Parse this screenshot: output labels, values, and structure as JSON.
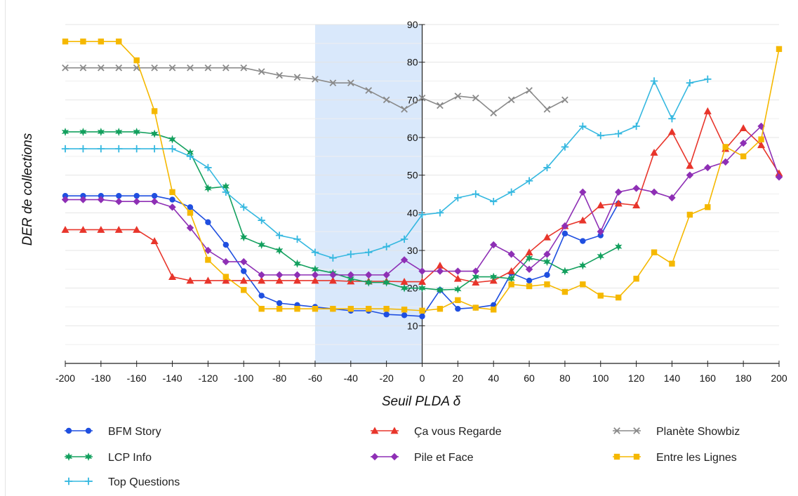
{
  "chart_data": {
    "type": "line",
    "title": "",
    "xlabel": "Seuil PLDA δ",
    "ylabel": "DER de collections",
    "xlim": [
      -200,
      200
    ],
    "ylim": [
      0,
      90
    ],
    "x_ticks": [
      -200,
      -180,
      -160,
      -140,
      -120,
      -100,
      -80,
      -60,
      -40,
      -20,
      0,
      20,
      40,
      60,
      80,
      100,
      120,
      140,
      160,
      180,
      200
    ],
    "y_ticks": [
      10,
      20,
      30,
      40,
      50,
      60,
      70,
      80,
      90
    ],
    "minor_y_step": 5,
    "highlight_region": {
      "x0": -60,
      "x1": 0,
      "color": "#d9e8fb"
    },
    "grid": "horizontal",
    "legend_position": "bottom",
    "series": [
      {
        "name": "BFM Story",
        "color": "#1f4fe0",
        "marker": "circle",
        "x": [
          -200,
          -190,
          -180,
          -170,
          -160,
          -150,
          -140,
          -130,
          -120,
          -110,
          -100,
          -90,
          -80,
          -70,
          -60,
          -50,
          -40,
          -30,
          -20,
          -10,
          0,
          10,
          20,
          30,
          40,
          50,
          60,
          70,
          80,
          90,
          100,
          110
        ],
        "y": [
          44.5,
          44.5,
          44.5,
          44.5,
          44.5,
          44.5,
          43.5,
          41.5,
          37.5,
          31.5,
          24.5,
          18,
          16,
          15.5,
          15,
          14.5,
          14,
          14,
          13,
          12.8,
          12.5,
          19.5,
          14.5,
          14.8,
          15.5,
          24,
          22,
          23.5,
          34.5,
          32.5,
          34,
          42.5
        ]
      },
      {
        "name": "Ça vous Regarde",
        "color": "#e8352b",
        "marker": "triangle",
        "x": [
          -200,
          -190,
          -180,
          -170,
          -160,
          -150,
          -140,
          -130,
          -120,
          -110,
          -100,
          -90,
          -80,
          -70,
          -60,
          -50,
          -40,
          -30,
          -20,
          -10,
          0,
          10,
          20,
          30,
          40,
          50,
          60,
          70,
          80,
          90,
          100,
          110,
          120,
          130,
          140,
          150,
          160,
          170,
          180,
          190,
          200
        ],
        "y": [
          35.5,
          35.5,
          35.5,
          35.5,
          35.5,
          32.5,
          23,
          22,
          22,
          22,
          22,
          22,
          22,
          22,
          22,
          22,
          21.8,
          21.8,
          21.8,
          21.7,
          21.7,
          26,
          22.5,
          21.5,
          22,
          24.5,
          29.5,
          33.5,
          36.5,
          38,
          42,
          42.5,
          42,
          56,
          61.5,
          52.5,
          67,
          57,
          62.5,
          58,
          50.5
        ]
      },
      {
        "name": "Planète Showbiz",
        "color": "#8a8a8a",
        "marker": "x",
        "x": [
          -200,
          -190,
          -180,
          -170,
          -160,
          -150,
          -140,
          -130,
          -120,
          -110,
          -100,
          -90,
          -80,
          -70,
          -60,
          -50,
          -40,
          -30,
          -20,
          -10,
          0,
          10,
          20,
          30,
          40,
          50,
          60,
          70,
          80
        ],
        "y": [
          78.5,
          78.5,
          78.5,
          78.5,
          78.5,
          78.5,
          78.5,
          78.5,
          78.5,
          78.5,
          78.5,
          77.5,
          76.5,
          76,
          75.5,
          74.5,
          74.5,
          72.5,
          70,
          67.5,
          70.5,
          68.5,
          71,
          70.5,
          66.5,
          70,
          72.5,
          67.5,
          70
        ]
      },
      {
        "name": "LCP Info",
        "color": "#13a05e",
        "marker": "star",
        "x": [
          -200,
          -190,
          -180,
          -170,
          -160,
          -150,
          -140,
          -130,
          -120,
          -110,
          -100,
          -90,
          -80,
          -70,
          -60,
          -50,
          -40,
          -30,
          -20,
          -10,
          0,
          10,
          20,
          30,
          40,
          50,
          60,
          70,
          80,
          90,
          100,
          110
        ],
        "y": [
          61.5,
          61.5,
          61.5,
          61.5,
          61.5,
          61,
          59.5,
          56,
          46.5,
          47,
          33.5,
          31.5,
          30,
          26.5,
          25,
          24,
          22.5,
          21.5,
          21.5,
          20,
          20,
          19.5,
          19.7,
          23,
          23,
          22.5,
          28,
          27,
          24.5,
          26,
          28.5,
          31
        ]
      },
      {
        "name": "Pile et Face",
        "color": "#8e2fb5",
        "marker": "diamond",
        "x": [
          -200,
          -190,
          -180,
          -170,
          -160,
          -150,
          -140,
          -130,
          -120,
          -110,
          -100,
          -90,
          -80,
          -70,
          -60,
          -50,
          -40,
          -30,
          -20,
          -10,
          0,
          10,
          20,
          30,
          40,
          50,
          60,
          70,
          80,
          90,
          100,
          110,
          120,
          130,
          140,
          150,
          160,
          170,
          180,
          190,
          200
        ],
        "y": [
          43.5,
          43.5,
          43.5,
          43,
          43,
          43,
          41.5,
          36,
          30,
          27,
          27,
          23.5,
          23.5,
          23.5,
          23.5,
          23.5,
          23.5,
          23.5,
          23.5,
          27.5,
          24.5,
          24.5,
          24.5,
          24.5,
          31.5,
          29,
          25,
          29,
          36.5,
          45.5,
          35,
          45.5,
          46.5,
          45.5,
          44,
          50,
          52,
          53.5,
          58.5,
          63,
          49.5
        ]
      },
      {
        "name": "Entre les Lignes",
        "color": "#f5b800",
        "marker": "square",
        "x": [
          -200,
          -190,
          -180,
          -170,
          -160,
          -150,
          -140,
          -130,
          -120,
          -110,
          -100,
          -90,
          -80,
          -70,
          -60,
          -50,
          -40,
          -30,
          -20,
          -10,
          0,
          10,
          20,
          30,
          40,
          50,
          60,
          70,
          80,
          90,
          100,
          110,
          120,
          130,
          140,
          150,
          160,
          170,
          180,
          190,
          200
        ],
        "y": [
          85.5,
          85.5,
          85.5,
          85.5,
          80.5,
          67,
          45.5,
          40,
          27.5,
          23,
          19.5,
          14.5,
          14.5,
          14.5,
          14.5,
          14.5,
          14.5,
          14.5,
          14.5,
          14.3,
          14,
          14.5,
          16.8,
          14.8,
          14.3,
          21,
          20.5,
          21,
          19,
          21,
          18,
          17.5,
          22.5,
          29.5,
          26.5,
          39.5,
          41.5,
          57.5,
          55,
          59.5,
          83.5
        ]
      },
      {
        "name": "Top Questions",
        "color": "#35b8e0",
        "marker": "plus",
        "x": [
          -200,
          -190,
          -180,
          -170,
          -160,
          -150,
          -140,
          -130,
          -120,
          -110,
          -100,
          -90,
          -80,
          -70,
          -60,
          -50,
          -40,
          -30,
          -20,
          -10,
          0,
          10,
          20,
          30,
          40,
          50,
          60,
          70,
          80,
          90,
          100,
          110,
          120,
          130,
          140,
          150,
          160
        ],
        "y": [
          57,
          57,
          57,
          57,
          57,
          57,
          57,
          55,
          52,
          45.5,
          41.5,
          38,
          34,
          33,
          29.5,
          28,
          29,
          29.5,
          31,
          33,
          39.5,
          40,
          44,
          45,
          43,
          45.5,
          48.5,
          52,
          57.5,
          63,
          60.5,
          61,
          63,
          75,
          65,
          74.5,
          75.5
        ]
      }
    ]
  }
}
